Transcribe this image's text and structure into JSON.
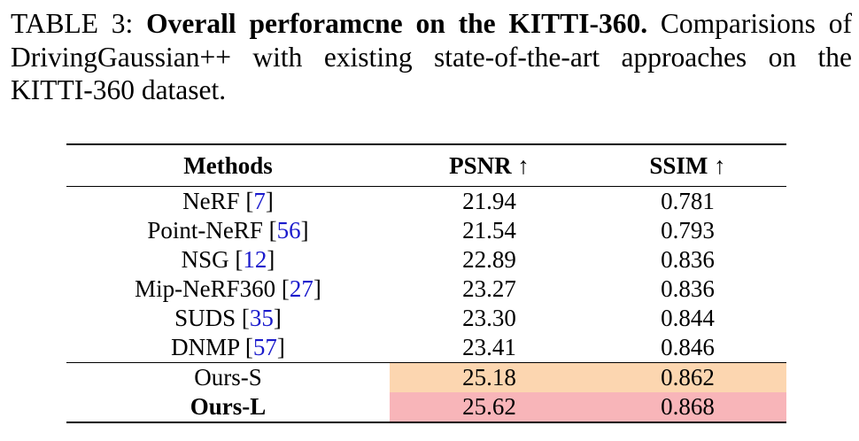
{
  "caption": {
    "label": "TABLE 3:",
    "title": "Overall perforamcne on the KITTI-360.",
    "text": "Comparisions of DrivingGaussian++ with existing state-of-the-art approaches on the KITTI-360 dataset."
  },
  "table": {
    "header": [
      "Methods",
      "PSNR ↑",
      "SSIM ↑"
    ],
    "rows": [
      {
        "method": "NeRF [",
        "cite": "7",
        "close": "]",
        "psnr": "21.94",
        "ssim": "0.781"
      },
      {
        "method": "Point-NeRF [",
        "cite": "56",
        "close": "]",
        "psnr": "21.54",
        "ssim": "0.793"
      },
      {
        "method": "NSG [",
        "cite": "12",
        "close": "]",
        "psnr": "22.89",
        "ssim": "0.836"
      },
      {
        "method": "Mip-NeRF360 [",
        "cite": "27",
        "close": "]",
        "psnr": "23.27",
        "ssim": "0.836"
      },
      {
        "method": "SUDS [",
        "cite": "35",
        "close": "]",
        "psnr": "23.30",
        "ssim": "0.844"
      },
      {
        "method": "DNMP [",
        "cite": "57",
        "close": "]",
        "psnr": "23.41",
        "ssim": "0.846"
      }
    ],
    "ours": [
      {
        "method": "Ours-S",
        "psnr": "25.18",
        "ssim": "0.862"
      },
      {
        "method": "Ours-L",
        "psnr": "25.62",
        "ssim": "0.868"
      }
    ]
  }
}
